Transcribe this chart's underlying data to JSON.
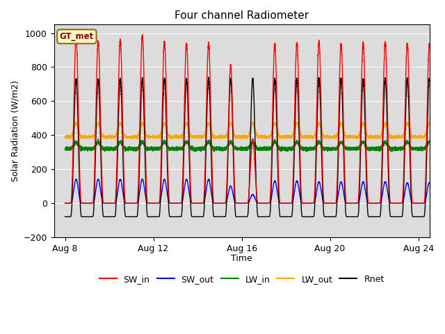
{
  "title": "Four channel Radiometer",
  "xlabel": "Time",
  "ylabel": "Solar Radiation (W/m2)",
  "ylim": [
    -200,
    1050
  ],
  "xtick_labels": [
    "Aug 8",
    "Aug 12",
    "Aug 16",
    "Aug 20",
    "Aug 24"
  ],
  "legend_label": "GT_met",
  "legend_box_color": "#ffffc8",
  "legend_box_border": "#8b6914",
  "legend_text_color": "#8b0000",
  "background_color": "#dcdcdc",
  "series": {
    "SW_in": {
      "color": "red",
      "lw": 1.0
    },
    "SW_out": {
      "color": "blue",
      "lw": 1.0
    },
    "LW_in": {
      "color": "green",
      "lw": 1.0
    },
    "LW_out": {
      "color": "orange",
      "lw": 1.0
    },
    "Rnet": {
      "color": "black",
      "lw": 1.0
    }
  },
  "n_days": 17,
  "day_peak_SW_in": [
    970,
    950,
    960,
    980,
    950,
    940,
    940,
    810,
    370,
    935,
    940,
    950,
    935,
    940,
    945,
    940,
    935
  ],
  "day_peak_SW_out": [
    140,
    140,
    140,
    140,
    140,
    140,
    140,
    100,
    50,
    130,
    130,
    125,
    125,
    125,
    125,
    120,
    120
  ],
  "LW_in_base": 320,
  "LW_out_base": 390,
  "Rnet_night": -80,
  "Rnet_day_peak": 730
}
